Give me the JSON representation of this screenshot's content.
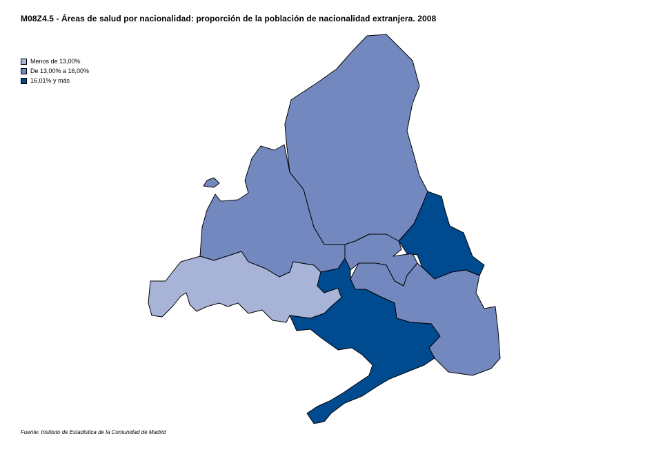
{
  "title": "M08Z4.5 - Áreas de salud por nacionalidad: proporción de la población de nacionalidad extranjera. 2008",
  "legend": [
    {
      "label": "Menos de 13,00%",
      "color": "#a7b4d8"
    },
    {
      "label": "De 13,00%  a 16,00%",
      "color": "#7388be"
    },
    {
      "label": "16,01% y más",
      "color": "#004a8f"
    }
  ],
  "source": "Fuente: Instituto de Estadística de la Comunidad de Madrid",
  "map_regions": [
    {
      "region": "norte",
      "class": "De 13,00%  a 16,00%"
    },
    {
      "region": "noroeste",
      "class": "De 13,00%  a 16,00%"
    },
    {
      "region": "suroeste",
      "class": "Menos de 13,00%"
    },
    {
      "region": "este",
      "class": "16,01% y más"
    },
    {
      "region": "sureste",
      "class": "De 13,00%  a 16,00%"
    },
    {
      "region": "sur",
      "class": "16,01% y más"
    },
    {
      "region": "centro",
      "class": "De 13,00%  a 16,00%"
    }
  ]
}
